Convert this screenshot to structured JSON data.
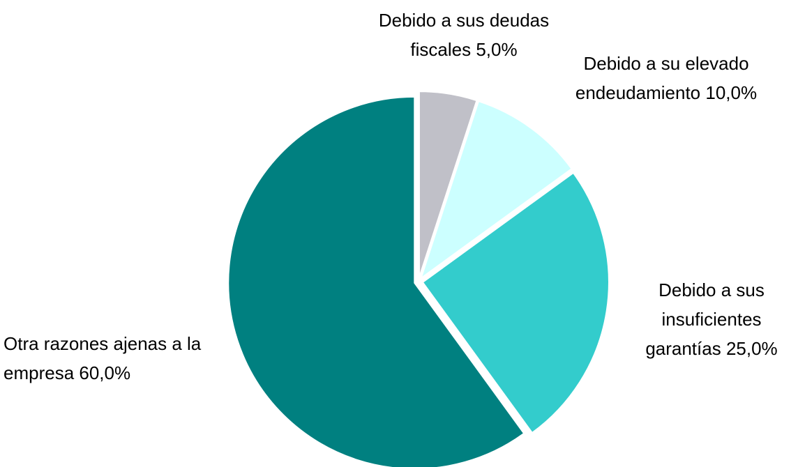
{
  "chart_data": {
    "type": "pie",
    "categories": [
      "Debido a sus deudas fiscales",
      "Debido a su elevado endeudamiento",
      "Debido a sus insuficientes garantías",
      "Otra razones ajenas a la empresa"
    ],
    "values": [
      5,
      10,
      25,
      60
    ],
    "value_labels": [
      "5,0%",
      "10,0%",
      "25,0%",
      "60,0%"
    ],
    "colors": [
      "#c0c0c8",
      "#ccffff",
      "#33cccc",
      "#008080"
    ]
  }
}
